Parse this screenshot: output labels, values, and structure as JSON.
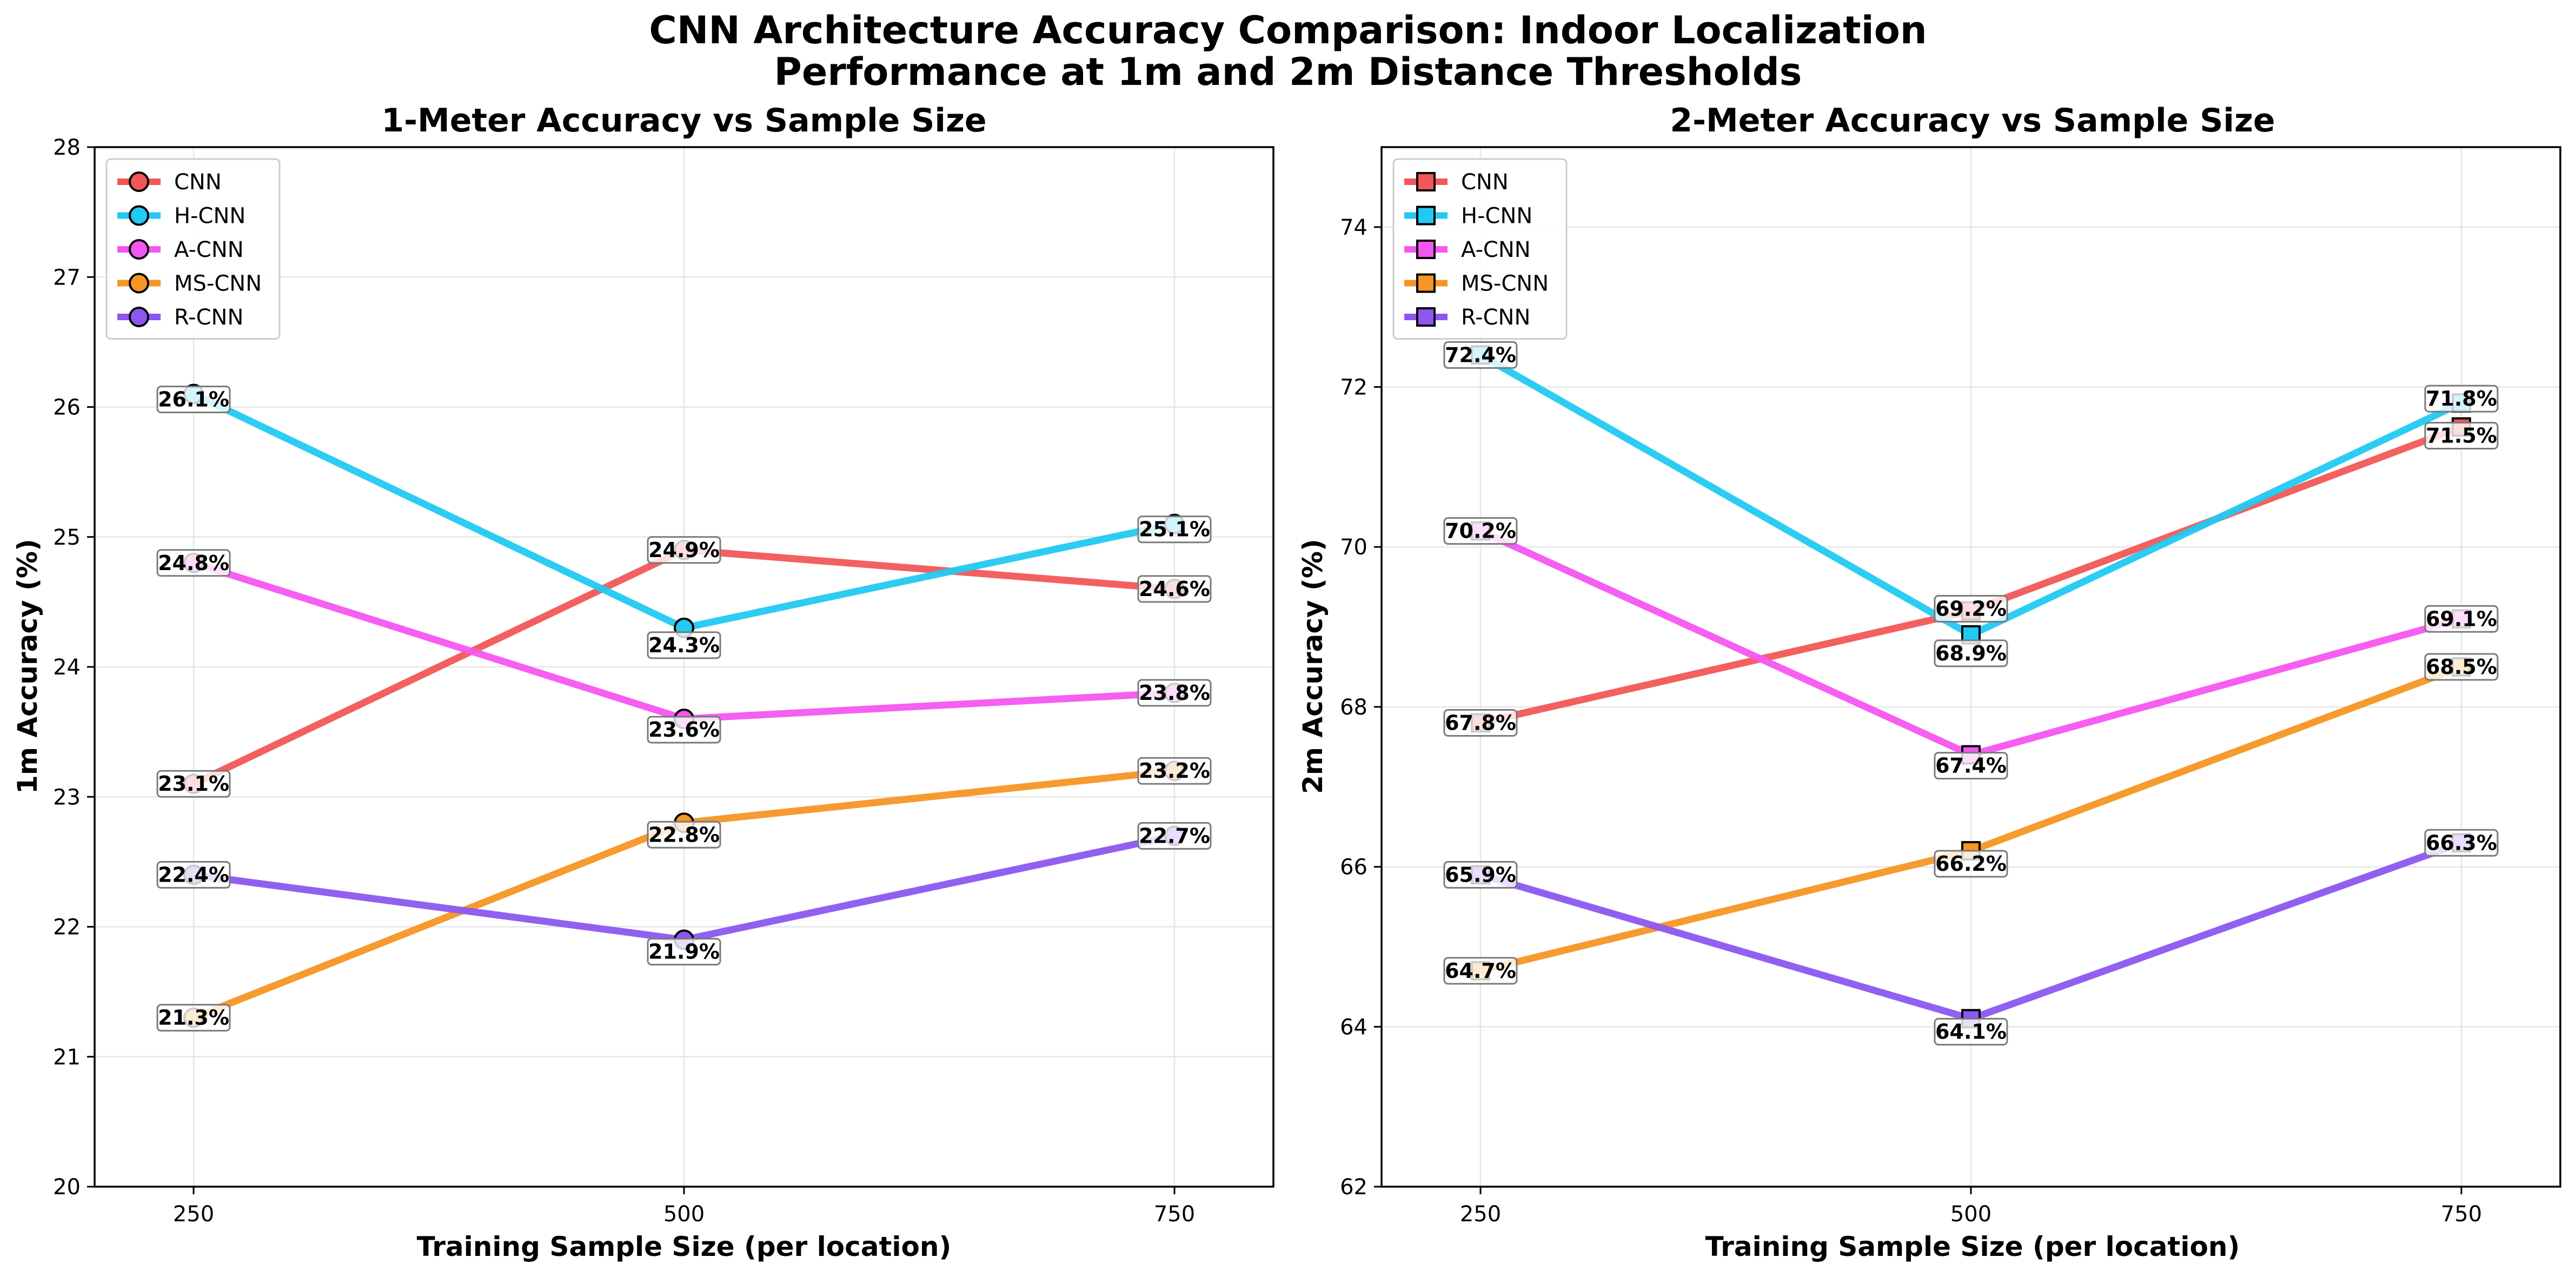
{
  "figure": {
    "title_line1": "CNN Architecture Accuracy Comparison: Indoor Localization",
    "title_line2": "Performance at 1m and 2m Distance Thresholds"
  },
  "chart_data": [
    {
      "type": "line",
      "title": "1-Meter Accuracy vs Sample Size",
      "xlabel": "Training Sample Size (per location)",
      "ylabel": "1m Accuracy (%)",
      "x": [
        250,
        500,
        750
      ],
      "ylim": [
        20,
        28
      ],
      "yticks": [
        20,
        21,
        22,
        23,
        24,
        25,
        26,
        27,
        28
      ],
      "marker": "circle",
      "grid": true,
      "legend_position": "top-left",
      "series": [
        {
          "name": "CNN",
          "color": "#f25757",
          "values": [
            23.1,
            24.9,
            24.6
          ],
          "labels": [
            "23.1%",
            "24.9%",
            "24.6%"
          ]
        },
        {
          "name": "H-CNN",
          "color": "#22c9f2",
          "values": [
            26.1,
            24.3,
            25.1
          ],
          "labels": [
            "26.1%",
            "24.3%",
            "25.1%"
          ]
        },
        {
          "name": "A-CNN",
          "color": "#f556f0",
          "values": [
            24.8,
            23.6,
            23.8
          ],
          "labels": [
            "24.8%",
            "23.6%",
            "23.8%"
          ]
        },
        {
          "name": "MS-CNN",
          "color": "#f59624",
          "values": [
            21.3,
            22.8,
            23.2
          ],
          "labels": [
            "21.3%",
            "22.8%",
            "23.2%"
          ]
        },
        {
          "name": "R-CNN",
          "color": "#8c57ef",
          "values": [
            22.4,
            21.9,
            22.7
          ],
          "labels": [
            "22.4%",
            "21.9%",
            "22.7%"
          ]
        }
      ]
    },
    {
      "type": "line",
      "title": "2-Meter Accuracy vs Sample Size",
      "xlabel": "Training Sample Size (per location)",
      "ylabel": "2m Accuracy (%)",
      "x": [
        250,
        500,
        750
      ],
      "ylim": [
        62,
        75
      ],
      "yticks": [
        62,
        64,
        66,
        68,
        70,
        72,
        74
      ],
      "marker": "square",
      "grid": true,
      "legend_position": "top-left",
      "series": [
        {
          "name": "CNN",
          "color": "#f25757",
          "values": [
            67.8,
            69.2,
            71.5
          ],
          "labels": [
            "67.8%",
            "69.2%",
            "71.5%"
          ]
        },
        {
          "name": "H-CNN",
          "color": "#22c9f2",
          "values": [
            72.4,
            68.9,
            71.8
          ],
          "labels": [
            "72.4%",
            "68.9%",
            "71.8%"
          ]
        },
        {
          "name": "A-CNN",
          "color": "#f556f0",
          "values": [
            70.2,
            67.4,
            69.1
          ],
          "labels": [
            "70.2%",
            "67.4%",
            "69.1%"
          ]
        },
        {
          "name": "MS-CNN",
          "color": "#f59624",
          "values": [
            64.7,
            66.2,
            68.5
          ],
          "labels": [
            "64.7%",
            "66.2%",
            "68.5%"
          ]
        },
        {
          "name": "R-CNN",
          "color": "#8c57ef",
          "values": [
            65.9,
            64.1,
            66.3
          ],
          "labels": [
            "65.9%",
            "64.1%",
            "66.3%"
          ]
        }
      ]
    }
  ]
}
